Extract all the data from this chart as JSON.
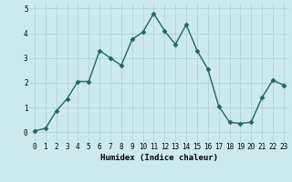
{
  "x": [
    0,
    1,
    2,
    3,
    4,
    5,
    6,
    7,
    8,
    9,
    10,
    11,
    12,
    13,
    14,
    15,
    16,
    17,
    18,
    19,
    20,
    21,
    22,
    23
  ],
  "y": [
    0.05,
    0.15,
    0.85,
    1.35,
    2.05,
    2.05,
    3.3,
    3.0,
    2.7,
    3.75,
    4.05,
    4.8,
    4.1,
    3.55,
    4.35,
    3.3,
    2.55,
    1.05,
    0.4,
    0.35,
    0.4,
    1.4,
    2.1,
    1.9
  ],
  "line_color": "#1a6b5a",
  "marker": "D",
  "markersize": 2.5,
  "linewidth": 1.0,
  "xlabel": "Humidex (Indice chaleur)",
  "xlim": [
    -0.5,
    23.5
  ],
  "ylim": [
    -0.4,
    5.2
  ],
  "yticks": [
    0,
    1,
    2,
    3,
    4,
    5
  ],
  "xticks": [
    0,
    1,
    2,
    3,
    4,
    5,
    6,
    7,
    8,
    9,
    10,
    11,
    12,
    13,
    14,
    15,
    16,
    17,
    18,
    19,
    20,
    21,
    22,
    23
  ],
  "bg_color": "#cdeaea",
  "grid_color": "#aacece",
  "xlabel_fontsize": 6.5,
  "tick_fontsize": 5.5
}
